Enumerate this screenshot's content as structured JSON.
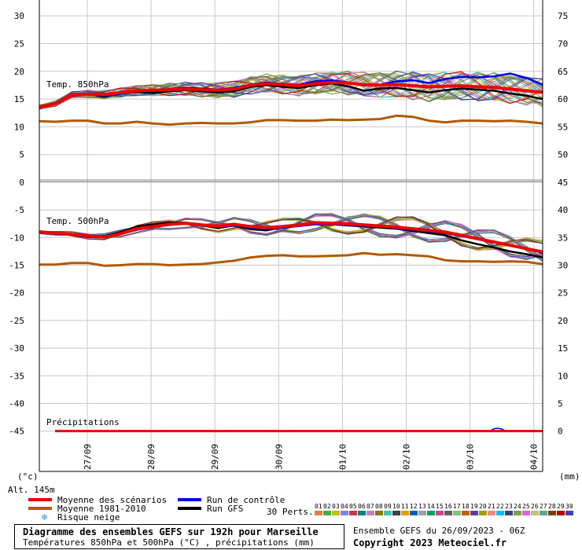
{
  "chart_data": {
    "type": "line",
    "x_dates": [
      "27/09",
      "28/09",
      "29/09",
      "30/09",
      "01/10",
      "02/10",
      "03/10",
      "04/10"
    ],
    "upper_panel": {
      "label": "Temp. 850hPa",
      "left_ticks": [
        "30",
        "25",
        "20",
        "15",
        "10",
        "5"
      ],
      "right_ticks": [
        "75",
        "70",
        "65",
        "60",
        "55",
        "50",
        "45"
      ],
      "ylim": [
        0,
        30
      ],
      "series": [
        {
          "name": "Moyenne des scénarios",
          "color": "#ee0000",
          "values": [
            13.5,
            14.2,
            15.8,
            15.9,
            15.8,
            16.2,
            16.5,
            16.6,
            16.7,
            16.8,
            16.7,
            16.6,
            16.8,
            17.5,
            17.8,
            17.6,
            17.4,
            17.8,
            18.0,
            17.9,
            17.6,
            17.5,
            17.6,
            17.4,
            17.2,
            17.3,
            17.4,
            17.2,
            17.1,
            16.8,
            16.5,
            16.2
          ]
        },
        {
          "name": "Moyenne 1981-2010",
          "color": "#b05a00",
          "values": [
            11.0,
            10.9,
            11.1,
            11.1,
            10.6,
            10.6,
            10.9,
            10.6,
            10.4,
            10.6,
            10.7,
            10.6,
            10.6,
            10.8,
            11.2,
            11.2,
            11.1,
            11.1,
            11.3,
            11.2,
            11.3,
            11.4,
            12.0,
            11.8,
            11.1,
            10.8,
            11.1,
            11.1,
            11.0,
            11.1,
            10.9,
            10.6
          ]
        },
        {
          "name": "Run de contrôle",
          "color": "#0000ee",
          "values": [
            13.5,
            14.3,
            15.9,
            15.8,
            15.6,
            15.9,
            16.6,
            16.5,
            16.8,
            17.0,
            16.9,
            16.7,
            17.0,
            17.6,
            18.0,
            17.7,
            17.6,
            18.2,
            18.4,
            18.0,
            17.4,
            17.6,
            18.2,
            18.4,
            17.9,
            18.6,
            19.0,
            18.9,
            19.1,
            19.6,
            18.8,
            17.6
          ]
        },
        {
          "name": "Run GFS",
          "color": "#000000",
          "values": [
            13.5,
            14.2,
            15.7,
            15.9,
            15.4,
            16.0,
            16.3,
            16.1,
            16.4,
            16.6,
            16.4,
            16.2,
            16.4,
            17.2,
            17.5,
            17.2,
            17.0,
            17.5,
            17.8,
            17.3,
            16.5,
            16.9,
            17.0,
            16.6,
            16.2,
            16.6,
            16.9,
            16.7,
            16.5,
            16.0,
            15.6,
            15.0
          ]
        }
      ]
    },
    "middle_panel": {
      "label": "Temp. 500hPa",
      "left_ticks": [
        "0",
        "-5",
        "-10",
        "-15",
        "-20",
        "-25",
        "-30",
        "-35",
        "-40",
        "-45"
      ],
      "right_ticks": [
        "45",
        "40",
        "35",
        "30",
        "25",
        "20",
        "15",
        "10",
        "5",
        "0"
      ],
      "ylim": [
        -52,
        0
      ],
      "series": [
        {
          "name": "Moyenne des scénarios",
          "color": "#ee0000",
          "values": [
            -9.0,
            -9.2,
            -9.4,
            -9.7,
            -9.9,
            -9.3,
            -8.4,
            -8.0,
            -7.6,
            -7.4,
            -7.7,
            -7.9,
            -7.6,
            -8.0,
            -8.2,
            -8.0,
            -7.7,
            -7.3,
            -7.4,
            -7.5,
            -7.7,
            -7.9,
            -8.1,
            -8.4,
            -8.7,
            -9.0,
            -9.6,
            -10.2,
            -10.8,
            -11.4,
            -12.0,
            -12.6
          ]
        },
        {
          "name": "Moyenne 1981-2010",
          "color": "#b05a00",
          "values": [
            -14.9,
            -14.9,
            -14.6,
            -14.6,
            -15.1,
            -15.0,
            -14.8,
            -14.8,
            -15.0,
            -14.9,
            -14.8,
            -14.5,
            -14.2,
            -13.6,
            -13.3,
            -13.2,
            -13.4,
            -13.4,
            -13.3,
            -13.2,
            -12.8,
            -13.1,
            -13.0,
            -13.2,
            -13.4,
            -14.1,
            -14.3,
            -14.3,
            -14.4,
            -14.3,
            -14.4,
            -14.8
          ]
        },
        {
          "name": "Run de contrôle",
          "color": "#0000ee",
          "values": [
            -9.0,
            -9.3,
            -9.5,
            -9.9,
            -10.0,
            -9.4,
            -8.6,
            -8.1,
            -7.7,
            -7.5,
            -7.8,
            -8.1,
            -7.8,
            -8.2,
            -8.4,
            -8.2,
            -7.9,
            -7.6,
            -7.6,
            -7.7,
            -7.9,
            -8.0,
            -8.3,
            -8.6,
            -8.9,
            -9.2,
            -9.7,
            -10.3,
            -10.9,
            -11.5,
            -12.0,
            -12.8
          ]
        },
        {
          "name": "Run GFS",
          "color": "#000000",
          "values": [
            -9.0,
            -9.2,
            -9.5,
            -9.8,
            -9.7,
            -9.0,
            -8.0,
            -7.6,
            -7.3,
            -7.3,
            -7.8,
            -8.3,
            -7.8,
            -8.5,
            -8.7,
            -8.1,
            -7.6,
            -7.3,
            -7.6,
            -7.8,
            -8.0,
            -8.2,
            -8.4,
            -8.8,
            -9.2,
            -9.6,
            -10.5,
            -11.2,
            -11.8,
            -12.5,
            -13.0,
            -13.6
          ]
        }
      ]
    },
    "precip": {
      "label": "Précipitations",
      "series_mean": {
        "name": "Moyenne des scénarios",
        "color": "#ee0000",
        "value": 0.0
      },
      "bump": {
        "color": "#0000ee",
        "peak": 0.15
      }
    },
    "axis_units": {
      "left": "(°c)",
      "right": "(mm)",
      "altitude": "Alt. 145m"
    }
  },
  "legend": {
    "mean_scenarios": "Moyenne des scénarios",
    "mean_1981": "Moyenne 1981-2010",
    "snow_risk": "Risque neige",
    "control_run": "Run de contrôle",
    "gfs_run": "Run GFS",
    "perts_label": "30 Perts.",
    "perts_numbers": [
      "01",
      "02",
      "03",
      "04",
      "05",
      "06",
      "07",
      "08",
      "09",
      "10",
      "11",
      "12",
      "13",
      "14",
      "15",
      "16",
      "17",
      "18",
      "19",
      "20",
      "21",
      "22",
      "23",
      "24",
      "25",
      "26",
      "27",
      "28",
      "29",
      "30"
    ],
    "perts_colors": [
      "#e08040",
      "#40b040",
      "#c0c000",
      "#8080ff",
      "#c04040",
      "#008080",
      "#c080c0",
      "#808000",
      "#40c0c0",
      "#404040",
      "#e0a000",
      "#0060c0",
      "#a0a0a0",
      "#00a060",
      "#d04090",
      "#606060",
      "#80c080",
      "#c06000",
      "#6040a0",
      "#a0a000",
      "#ff8080",
      "#00c0ff",
      "#404080",
      "#80a040",
      "#e060e0",
      "#c0c080",
      "#60a0a0",
      "#804000",
      "#b00000",
      "#4040c0"
    ]
  },
  "footer": {
    "title": "Diagramme des ensembles GEFS sur 192h pour Marseille",
    "subtitle": "Températures 850hPa et 500hPa (°C) , précipitations (mm)",
    "run_info": "Ensemble GEFS du 26/09/2023 - 06Z",
    "copyright": "Copyright 2023 Meteociel.fr"
  }
}
